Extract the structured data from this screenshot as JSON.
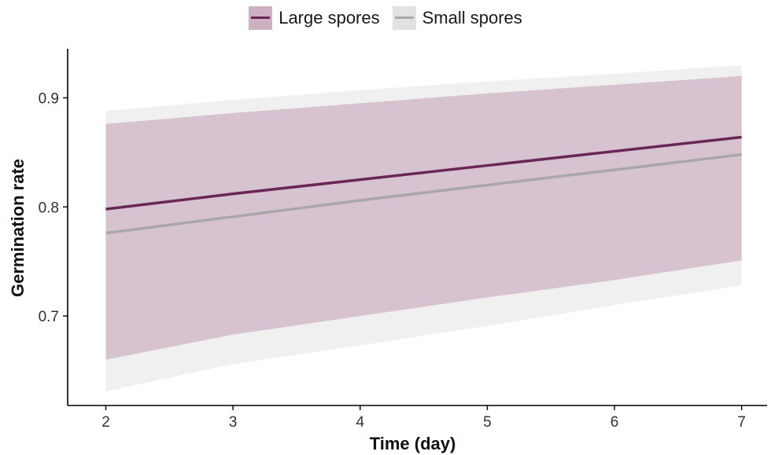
{
  "chart_data": {
    "type": "line",
    "title": "",
    "xlabel": "Time (day)",
    "ylabel": "Germination rate",
    "xlim": [
      1.7,
      7.2
    ],
    "ylim": [
      0.618,
      0.945
    ],
    "x_ticks": [
      "2",
      "3",
      "4",
      "5",
      "6",
      "7"
    ],
    "y_ticks": [
      "0.7",
      "0.8",
      "0.9"
    ],
    "grid": false,
    "legend_position": "top-center",
    "series": [
      {
        "name": "Large spores",
        "color": "#6b2657",
        "band_color": "#cdb0c2",
        "x": [
          2,
          3,
          4,
          5,
          6,
          7
        ],
        "y": [
          0.798,
          0.812,
          0.825,
          0.838,
          0.851,
          0.864
        ],
        "lower": [
          0.66,
          0.683,
          0.7,
          0.717,
          0.733,
          0.751
        ],
        "upper": [
          0.876,
          0.886,
          0.895,
          0.904,
          0.912,
          0.92
        ]
      },
      {
        "name": "Small spores",
        "color": "#a8a8a8",
        "band_color": "#e2e2e2",
        "x": [
          2,
          3,
          4,
          5,
          6,
          7
        ],
        "y": [
          0.776,
          0.791,
          0.806,
          0.82,
          0.834,
          0.848
        ],
        "lower": [
          0.631,
          0.656,
          0.673,
          0.691,
          0.71,
          0.728
        ],
        "upper": [
          0.888,
          0.898,
          0.907,
          0.915,
          0.922,
          0.93
        ]
      }
    ]
  }
}
